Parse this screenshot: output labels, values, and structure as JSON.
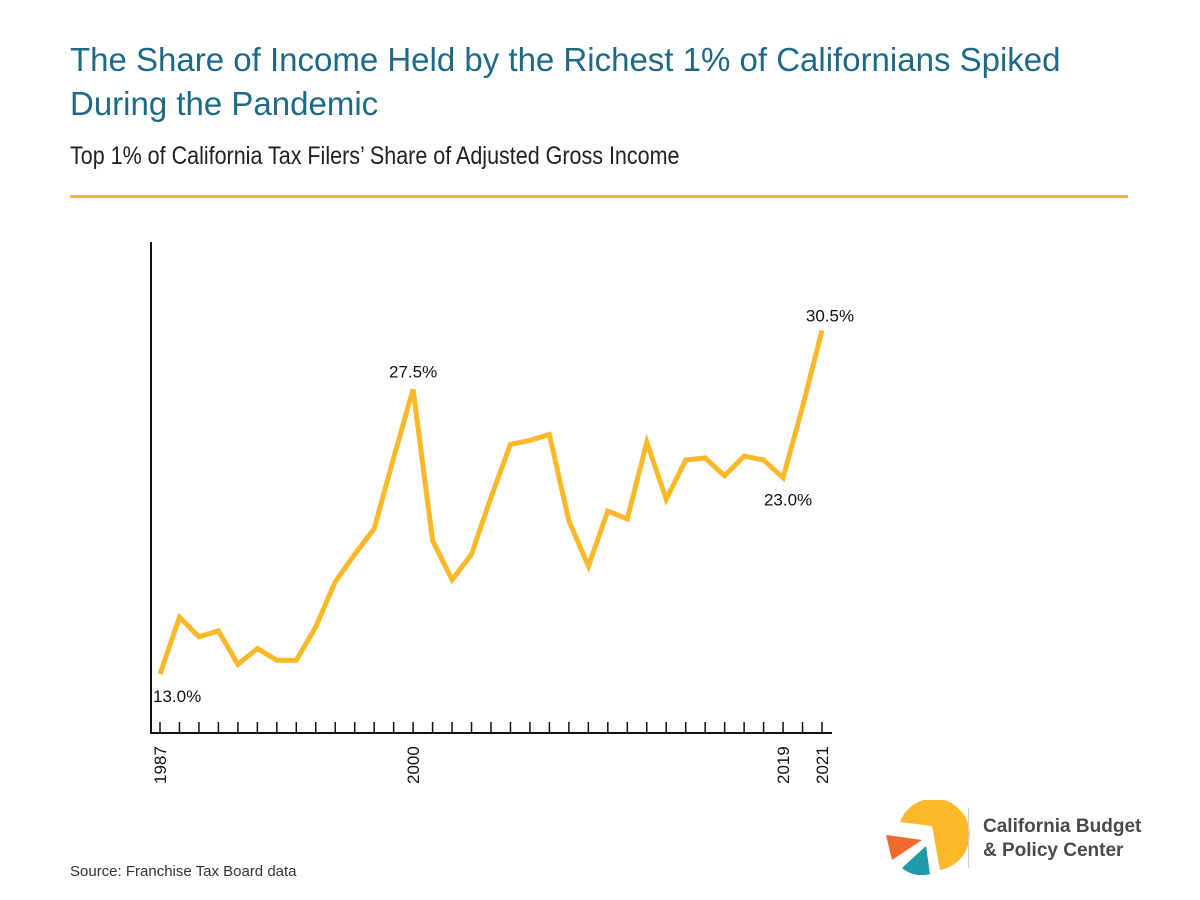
{
  "title": "The Share of Income Held by the Richest 1% of Californians Spiked During the Pandemic",
  "subtitle": "Top 1% of California Tax Filers’ Share of Adjusted Gross Income",
  "source": "Source: Franchise Tax Board data",
  "logo": {
    "line1": "California Budget",
    "line2": "& Policy Center",
    "colors": [
      "#fbb829",
      "#ef6a2c",
      "#1f9aaa"
    ]
  },
  "colors": {
    "title": "#1d6a87",
    "line": "#fbb829",
    "rule": "#fbb829"
  },
  "chart_data": {
    "type": "line",
    "title": "Top 1% of California Tax Filers’ Share of Adjusted Gross Income",
    "xlabel": "",
    "ylabel": "",
    "x": [
      1987,
      1988,
      1989,
      1990,
      1991,
      1992,
      1993,
      1994,
      1995,
      1996,
      1997,
      1998,
      1999,
      2000,
      2001,
      2002,
      2003,
      2004,
      2005,
      2006,
      2007,
      2008,
      2009,
      2010,
      2011,
      2012,
      2013,
      2014,
      2015,
      2016,
      2017,
      2018,
      2019,
      2020,
      2021
    ],
    "series": [
      {
        "values": [
          13.0,
          15.9,
          14.9,
          15.2,
          13.5,
          14.3,
          13.7,
          13.7,
          15.4,
          17.7,
          19.1,
          20.4,
          24.0,
          27.5,
          19.8,
          17.8,
          19.1,
          22.0,
          24.7,
          24.9,
          25.2,
          20.8,
          18.5,
          21.3,
          20.9,
          24.8,
          21.9,
          23.9,
          24.0,
          23.1,
          24.1,
          23.9,
          23.0,
          26.6,
          30.5
        ]
      }
    ],
    "xtick_labels": [
      "1987",
      "2000",
      "2019",
      "2021"
    ],
    "annotations": [
      {
        "x": 1987,
        "label": "13.0%"
      },
      {
        "x": 2000,
        "label": "27.5%"
      },
      {
        "x": 2019,
        "label": "23.0%"
      },
      {
        "x": 2021,
        "label": "30.5%"
      }
    ],
    "ylim": [
      10,
      35
    ],
    "xlim": [
      1987,
      2021
    ],
    "y_tick_labels_shown": false,
    "grid": false,
    "legend": "none"
  }
}
